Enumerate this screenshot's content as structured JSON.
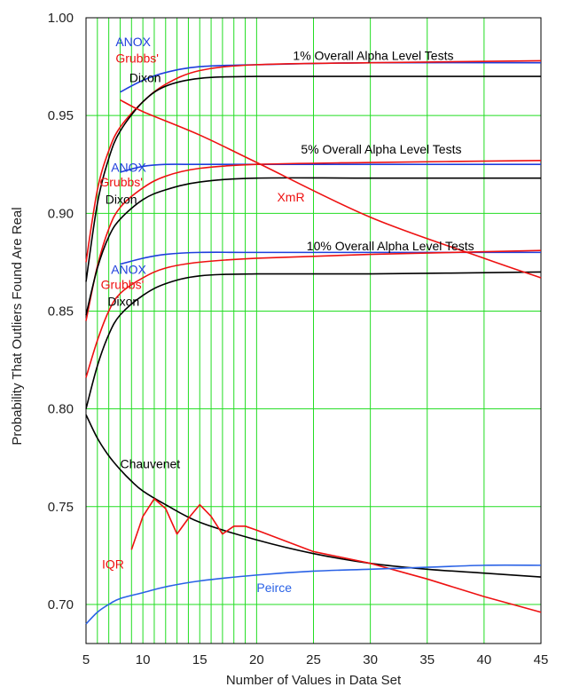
{
  "chart_data": {
    "type": "line",
    "title": "",
    "xlabel": "Number of Values in Data Set",
    "ylabel": "Probability That Outliers Found Are Real",
    "xlim": [
      5,
      45
    ],
    "ylim": [
      0.68,
      1.0
    ],
    "x_ticks": [
      5,
      10,
      15,
      20,
      25,
      30,
      35,
      40,
      45
    ],
    "x_tick_labels": [
      "5",
      "10",
      "15",
      "20",
      "25",
      "30",
      "35",
      "40",
      "45"
    ],
    "y_ticks": [
      0.7,
      0.75,
      0.8,
      0.85,
      0.9,
      0.95,
      1.0
    ],
    "y_tick_labels": [
      "0.70",
      "0.75",
      "0.80",
      "0.85",
      "0.90",
      "0.95",
      "1.00"
    ],
    "grid": {
      "on": true,
      "color": "#22dd22",
      "vertical_x": [
        6,
        7,
        8,
        9,
        10,
        11,
        12,
        13,
        14,
        15,
        16,
        17,
        18,
        19,
        20,
        25,
        30,
        35,
        40,
        45
      ],
      "horizontal_y": [
        0.7,
        0.75,
        0.8,
        0.85,
        0.9,
        0.95
      ]
    },
    "colors": {
      "anox": "#1f3fdd",
      "grubbs": "#ee1111",
      "dixon": "#000000",
      "peirce": "#2a62e6",
      "grid": "#22dd22"
    },
    "series": [
      {
        "key": "anox_1",
        "color": "#1f3fdd",
        "x": [
          8,
          10,
          12,
          15,
          20,
          30,
          45
        ],
        "y": [
          0.962,
          0.968,
          0.972,
          0.975,
          0.976,
          0.977,
          0.977
        ]
      },
      {
        "key": "grubbs_1",
        "color": "#ee1111",
        "x": [
          5,
          6,
          7,
          8,
          10,
          12,
          15,
          20,
          30,
          45
        ],
        "y": [
          0.875,
          0.912,
          0.932,
          0.944,
          0.957,
          0.966,
          0.973,
          0.976,
          0.977,
          0.978
        ]
      },
      {
        "key": "dixon_1",
        "color": "#000000",
        "x": [
          5,
          6,
          7,
          8,
          10,
          12,
          15,
          20,
          30,
          45
        ],
        "y": [
          0.865,
          0.905,
          0.928,
          0.942,
          0.957,
          0.965,
          0.969,
          0.97,
          0.97,
          0.97
        ]
      },
      {
        "key": "anox_5",
        "color": "#1f3fdd",
        "x": [
          8,
          10,
          12,
          15,
          20,
          30,
          45
        ],
        "y": [
          0.921,
          0.924,
          0.925,
          0.925,
          0.925,
          0.925,
          0.925
        ]
      },
      {
        "key": "grubbs_5",
        "color": "#ee1111",
        "x": [
          5,
          6,
          7,
          8,
          10,
          12,
          15,
          20,
          30,
          45
        ],
        "y": [
          0.845,
          0.873,
          0.892,
          0.903,
          0.913,
          0.919,
          0.923,
          0.925,
          0.926,
          0.927
        ]
      },
      {
        "key": "dixon_5",
        "color": "#000000",
        "x": [
          5,
          6,
          7,
          8,
          10,
          12,
          15,
          20,
          30,
          45
        ],
        "y": [
          0.848,
          0.872,
          0.888,
          0.897,
          0.907,
          0.912,
          0.916,
          0.918,
          0.918,
          0.918
        ]
      },
      {
        "key": "anox_10",
        "color": "#1f3fdd",
        "x": [
          8,
          10,
          12,
          15,
          20,
          30,
          45
        ],
        "y": [
          0.874,
          0.877,
          0.879,
          0.88,
          0.88,
          0.88,
          0.88
        ]
      },
      {
        "key": "grubbs_10",
        "color": "#ee1111",
        "x": [
          5,
          6,
          7,
          8,
          10,
          12,
          15,
          20,
          30,
          45
        ],
        "y": [
          0.816,
          0.835,
          0.85,
          0.859,
          0.867,
          0.872,
          0.875,
          0.877,
          0.879,
          0.881
        ]
      },
      {
        "key": "dixon_10",
        "color": "#000000",
        "x": [
          5,
          6,
          7,
          8,
          10,
          12,
          15,
          20,
          30,
          45
        ],
        "y": [
          0.8,
          0.822,
          0.838,
          0.848,
          0.858,
          0.864,
          0.868,
          0.869,
          0.869,
          0.87
        ]
      },
      {
        "key": "xmr",
        "color": "#ee1111",
        "x": [
          8,
          10,
          15,
          20,
          30,
          40,
          45
        ],
        "y": [
          0.958,
          0.952,
          0.94,
          0.926,
          0.898,
          0.877,
          0.867
        ]
      },
      {
        "key": "chauvenet",
        "color": "#000000",
        "x": [
          5,
          6,
          7,
          8,
          9,
          10,
          12,
          15,
          20,
          25,
          30,
          35,
          40,
          45
        ],
        "y": [
          0.797,
          0.785,
          0.776,
          0.769,
          0.763,
          0.758,
          0.751,
          0.742,
          0.733,
          0.726,
          0.721,
          0.718,
          0.716,
          0.714
        ]
      },
      {
        "key": "iqr",
        "color": "#ee1111",
        "x": [
          9,
          10,
          11,
          12,
          13,
          14,
          15,
          16,
          17,
          18,
          19,
          20,
          25,
          30,
          35,
          40,
          45
        ],
        "y": [
          0.728,
          0.745,
          0.754,
          0.749,
          0.736,
          0.744,
          0.751,
          0.745,
          0.736,
          0.74,
          0.74,
          0.738,
          0.727,
          0.721,
          0.713,
          0.704,
          0.696
        ]
      },
      {
        "key": "peirce",
        "color": "#2a62e6",
        "x": [
          5,
          6,
          7,
          8,
          10,
          12,
          15,
          20,
          25,
          30,
          35,
          40,
          45
        ],
        "y": [
          0.69,
          0.696,
          0.7,
          0.703,
          0.706,
          0.709,
          0.712,
          0.715,
          0.717,
          0.718,
          0.719,
          0.72,
          0.72
        ]
      }
    ],
    "annotations": [
      {
        "text": "ANOX",
        "color": "#1f3fdd",
        "x": 7.6,
        "y": 0.9854
      },
      {
        "text": "Grubbs'",
        "color": "#ee1111",
        "x": 7.6,
        "y": 0.9771
      },
      {
        "text": "Dixon",
        "color": "#000000",
        "x": 8.8,
        "y": 0.967
      },
      {
        "text": "1% Overall Alpha Level Tests",
        "color": "#000000",
        "x": 23.2,
        "y": 0.9784
      },
      {
        "text": "5% Overall Alpha Level Tests",
        "color": "#000000",
        "x": 23.9,
        "y": 0.9305
      },
      {
        "text": "ANOX",
        "color": "#1f3fdd",
        "x": 7.2,
        "y": 0.9213
      },
      {
        "text": "Grubbs'",
        "color": "#ee1111",
        "x": 6.2,
        "y": 0.9137
      },
      {
        "text": "Dixon",
        "color": "#000000",
        "x": 6.7,
        "y": 0.905
      },
      {
        "text": "XmR",
        "color": "#ee1111",
        "x": 21.8,
        "y": 0.906
      },
      {
        "text": "10% Overall Alpha Level Tests",
        "color": "#000000",
        "x": 24.4,
        "y": 0.881
      },
      {
        "text": "ANOX",
        "color": "#1f3fdd",
        "x": 7.2,
        "y": 0.869
      },
      {
        "text": "Grubbs'",
        "color": "#ee1111",
        "x": 6.3,
        "y": 0.8614
      },
      {
        "text": "Dixon",
        "color": "#000000",
        "x": 6.9,
        "y": 0.8526
      },
      {
        "text": "Chauvenet",
        "color": "#000000",
        "x": 8.0,
        "y": 0.7696
      },
      {
        "text": "IQR",
        "color": "#ee1111",
        "x": 6.4,
        "y": 0.7183
      },
      {
        "text": "Peirce",
        "color": "#2a62e6",
        "x": 20.0,
        "y": 0.7063
      }
    ]
  }
}
